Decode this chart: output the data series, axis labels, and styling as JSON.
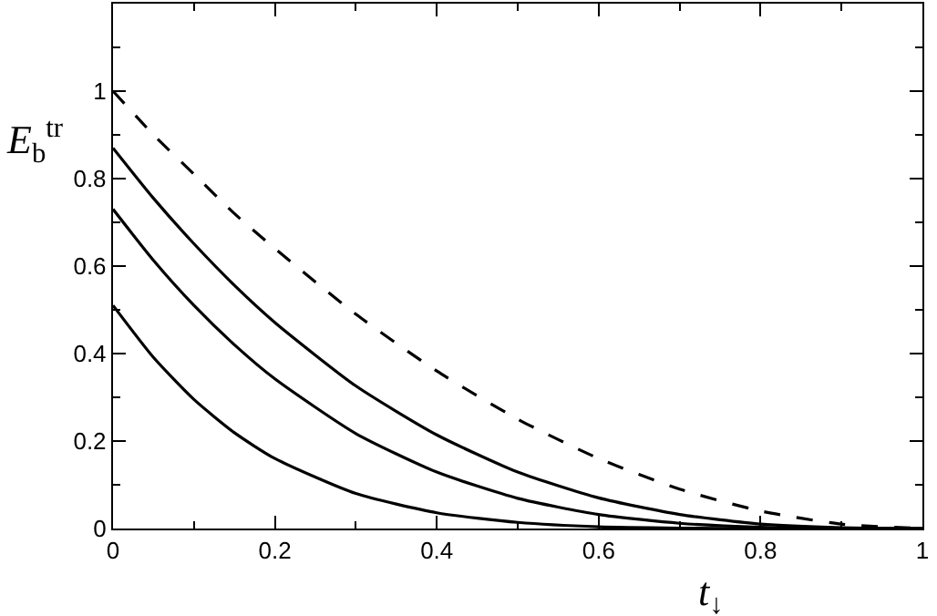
{
  "chart_data": {
    "type": "line",
    "xlabel": "t$_{↓}$",
    "ylabel": "E$_{b}$$^{tr}$",
    "x": [
      0,
      0.05,
      0.1,
      0.15,
      0.2,
      0.3,
      0.4,
      0.5,
      0.6,
      0.7,
      0.8,
      0.9,
      1.0
    ],
    "series": [
      {
        "color": "#000000",
        "line_style": "dashed",
        "values": [
          1,
          0.9,
          0.81,
          0.72,
          0.64,
          0.49,
          0.36,
          0.25,
          0.16,
          0.09,
          0.04,
          0.01,
          0
        ]
      },
      {
        "color": "#000000",
        "line_style": "solid",
        "values": [
          0.87,
          0.755,
          0.651,
          0.556,
          0.471,
          0.326,
          0.214,
          0.129,
          0.07,
          0.032,
          0.01,
          0.002,
          0
        ]
      },
      {
        "color": "#000000",
        "line_style": "solid",
        "values": [
          0.73,
          0.613,
          0.51,
          0.42,
          0.342,
          0.217,
          0.129,
          0.069,
          0.032,
          0.012,
          0.003,
          0,
          0
        ]
      },
      {
        "color": "#000000",
        "line_style": "solid",
        "values": [
          0.51,
          0.391,
          0.295,
          0.219,
          0.16,
          0.08,
          0.036,
          0.014,
          0.004,
          0.001,
          0,
          0,
          0
        ]
      }
    ],
    "xlim": [
      0,
      1
    ],
    "xticks": [
      0,
      0.2,
      0.4,
      0.6,
      0.8,
      1
    ],
    "ylim": [
      0,
      1.2
    ],
    "yticks": [
      0,
      0.2,
      0.4,
      0.6,
      0.8,
      1
    ],
    "marker": "none"
  }
}
